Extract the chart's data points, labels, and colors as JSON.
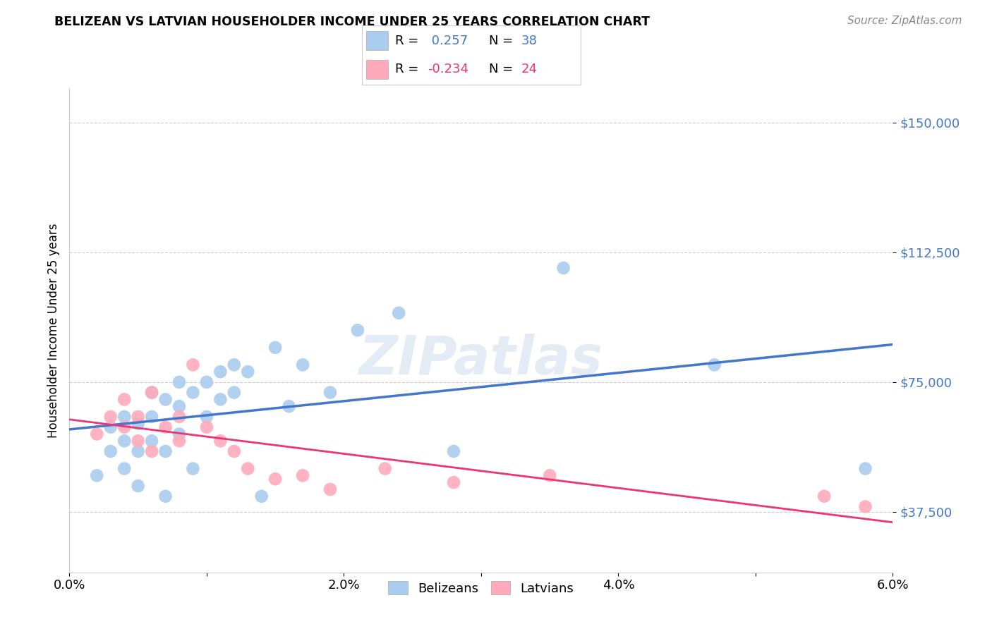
{
  "title": "BELIZEAN VS LATVIAN HOUSEHOLDER INCOME UNDER 25 YEARS CORRELATION CHART",
  "source": "Source: ZipAtlas.com",
  "ylabel": "Householder Income Under 25 years",
  "xlim": [
    0.0,
    0.06
  ],
  "ylim": [
    20000,
    160000
  ],
  "yticks": [
    37500,
    75000,
    112500,
    150000
  ],
  "ytick_labels": [
    "$37,500",
    "$75,000",
    "$112,500",
    "$150,000"
  ],
  "xticks": [
    0.0,
    0.01,
    0.02,
    0.03,
    0.04,
    0.05,
    0.06
  ],
  "xtick_labels": [
    "0.0%",
    "",
    "2.0%",
    "",
    "4.0%",
    "",
    "6.0%"
  ],
  "belizean_color": "#aaccee",
  "latvian_color": "#ffaabb",
  "line_blue": "#4477cc",
  "line_pink": "#ee3377",
  "line_gray_dashed": "#999999",
  "r_belizean": 0.257,
  "n_belizean": 38,
  "r_latvian": -0.234,
  "n_latvian": 24,
  "watermark": "ZIPatlas",
  "belizean_x": [
    0.002,
    0.003,
    0.003,
    0.004,
    0.004,
    0.004,
    0.005,
    0.005,
    0.005,
    0.006,
    0.006,
    0.006,
    0.007,
    0.007,
    0.007,
    0.008,
    0.008,
    0.008,
    0.009,
    0.009,
    0.01,
    0.01,
    0.011,
    0.011,
    0.012,
    0.012,
    0.013,
    0.014,
    0.015,
    0.016,
    0.017,
    0.019,
    0.021,
    0.024,
    0.028,
    0.036,
    0.047,
    0.058
  ],
  "belizean_y": [
    48000,
    55000,
    62000,
    50000,
    58000,
    65000,
    45000,
    55000,
    63000,
    58000,
    65000,
    72000,
    42000,
    55000,
    70000,
    60000,
    68000,
    75000,
    50000,
    72000,
    65000,
    75000,
    70000,
    78000,
    72000,
    80000,
    78000,
    42000,
    85000,
    68000,
    80000,
    72000,
    90000,
    95000,
    55000,
    108000,
    80000,
    50000
  ],
  "latvian_x": [
    0.002,
    0.003,
    0.004,
    0.004,
    0.005,
    0.005,
    0.006,
    0.006,
    0.007,
    0.008,
    0.008,
    0.009,
    0.01,
    0.011,
    0.012,
    0.013,
    0.015,
    0.017,
    0.019,
    0.023,
    0.028,
    0.035,
    0.055,
    0.058
  ],
  "latvian_y": [
    60000,
    65000,
    62000,
    70000,
    58000,
    65000,
    55000,
    72000,
    62000,
    58000,
    65000,
    80000,
    62000,
    58000,
    55000,
    50000,
    47000,
    48000,
    44000,
    50000,
    46000,
    48000,
    42000,
    39000
  ]
}
